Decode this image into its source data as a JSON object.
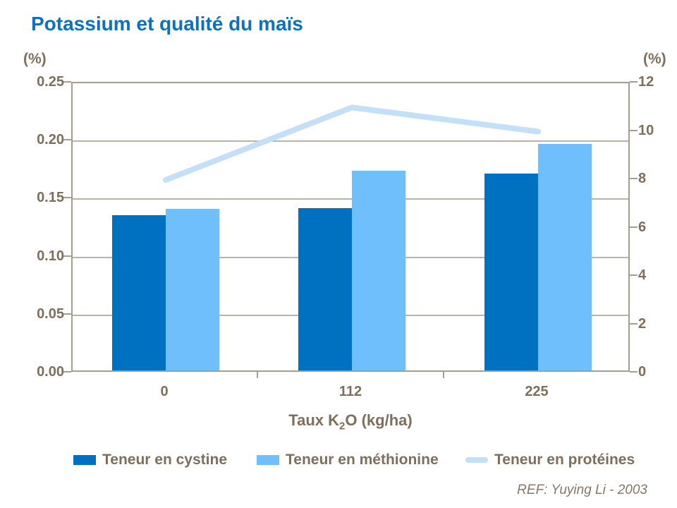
{
  "title": "Potassium et qualité du maïs",
  "left_axis": {
    "unit": "(%)",
    "tick_labels": [
      "0.25",
      "0.20",
      "0.15",
      "0.10",
      "0.05",
      "0.00"
    ]
  },
  "right_axis": {
    "unit": "(%)",
    "tick_labels": [
      "12",
      "10",
      "8",
      "6",
      "4",
      "2",
      "0"
    ]
  },
  "x_axis": {
    "tick_labels": [
      "0",
      "112",
      "225"
    ],
    "title": {
      "prefix": "Taux K",
      "subscript": "2",
      "suffix": "O (kg/ha)"
    }
  },
  "reference": "REF: Yuying Li - 2003",
  "colors": {
    "title": "#0C71C0",
    "cystine_bar": "#0070C0",
    "methionine_bar": "#6FBFFC",
    "proteins_line": "#C4E0F9",
    "axis_text": "#7E6E5A",
    "axis_line": "#A89C8D",
    "gridline": "#BCB2A5"
  },
  "chart_data": {
    "type": "bar",
    "subtype": "combo-bar-line-dual-axis",
    "title": "Potassium et qualité du maïs",
    "categories": [
      "0",
      "112",
      "225"
    ],
    "series": [
      {
        "name": "Teneur en cystine",
        "type": "bar",
        "axis": "left",
        "color_key": "cystine_bar",
        "values": [
          0.134,
          0.14,
          0.17
        ]
      },
      {
        "name": "Teneur en méthionine",
        "type": "bar",
        "axis": "left",
        "color_key": "methionine_bar",
        "values": [
          0.139,
          0.172,
          0.195
        ]
      },
      {
        "name": "Teneur en protéines",
        "type": "line",
        "axis": "right",
        "color_key": "proteins_line",
        "values": [
          8,
          11,
          10
        ]
      }
    ],
    "xlabel": "Taux K₂O (kg/ha)",
    "ylabel_left": "(%)",
    "ylabel_right": "(%)",
    "left_ylim": [
      0,
      0.25
    ],
    "right_ylim": [
      0,
      12
    ],
    "left_tick_step": 0.05,
    "right_tick_step": 2,
    "grid": true,
    "legend_position": "bottom",
    "annotation": "REF: Yuying Li - 2003"
  }
}
